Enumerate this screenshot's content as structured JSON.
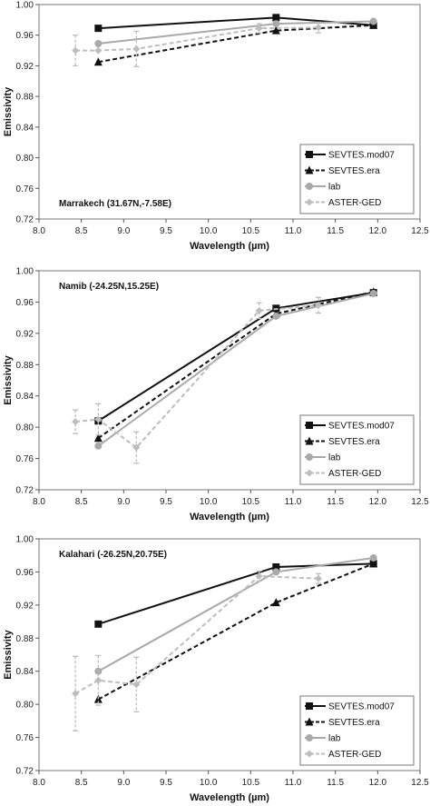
{
  "chart_data": [
    {
      "type": "line",
      "title": "",
      "annotation": "Marrakech (31.67N,-7.58E)",
      "xlabel": "Wavelength (µm)",
      "ylabel": "Emissivity",
      "xlim": [
        8.0,
        12.5
      ],
      "ylim": [
        0.72,
        1.0
      ],
      "x_ticks": [
        "8.0",
        "8.5",
        "9.0",
        "9.5",
        "10.0",
        "10.5",
        "11.0",
        "11.5",
        "12.0",
        "12.5"
      ],
      "y_ticks": [
        "0.72",
        "0.76",
        "0.80",
        "0.84",
        "0.88",
        "0.92",
        "0.96",
        "1.00"
      ],
      "grid": false,
      "legend_position": "bottom-right",
      "series": [
        {
          "name": "SEVTES.mod07",
          "color": "#111111",
          "line": "solid",
          "marker": "square",
          "x": [
            8.7,
            10.8,
            11.95
          ],
          "y": [
            0.969,
            0.983,
            0.973
          ]
        },
        {
          "name": "SEVTES.era",
          "color": "#111111",
          "line": "dashed",
          "marker": "triangle",
          "x": [
            8.7,
            10.8,
            11.95
          ],
          "y": [
            0.925,
            0.966,
            0.973
          ]
        },
        {
          "name": "lab",
          "color": "#a9a9a9",
          "line": "solid",
          "marker": "circle",
          "x": [
            8.7,
            10.8,
            11.95
          ],
          "y": [
            0.949,
            0.975,
            0.978
          ]
        },
        {
          "name": "ASTER-GED",
          "color": "#bdbdbd",
          "line": "dashed",
          "marker": "diamond",
          "x": [
            8.43,
            8.7,
            9.15,
            10.6,
            11.3
          ],
          "y": [
            0.94,
            0.94,
            0.942,
            0.969,
            0.97
          ],
          "error": [
            0.02,
            0.0,
            0.023,
            0.006,
            0.007
          ]
        }
      ]
    },
    {
      "type": "line",
      "title": "",
      "annotation": "Namib (-24.25N,15.25E)",
      "xlabel": "Wavelength (µm)",
      "ylabel": "Emissivity",
      "xlim": [
        8.0,
        12.5
      ],
      "ylim": [
        0.72,
        1.0
      ],
      "x_ticks": [
        "8.0",
        "8.5",
        "9.0",
        "9.5",
        "10.0",
        "10.5",
        "11.0",
        "11.5",
        "12.0",
        "12.5"
      ],
      "y_ticks": [
        "0.72",
        "0.76",
        "0.80",
        "0.84",
        "0.88",
        "0.92",
        "0.96",
        "1.00"
      ],
      "grid": false,
      "legend_position": "bottom-right",
      "series": [
        {
          "name": "SEVTES.mod07",
          "color": "#111111",
          "line": "solid",
          "marker": "square",
          "x": [
            8.7,
            10.8,
            11.95
          ],
          "y": [
            0.808,
            0.952,
            0.972
          ]
        },
        {
          "name": "SEVTES.era",
          "color": "#111111",
          "line": "dashed",
          "marker": "triangle",
          "x": [
            8.7,
            10.8,
            11.95
          ],
          "y": [
            0.786,
            0.945,
            0.973
          ]
        },
        {
          "name": "lab",
          "color": "#a9a9a9",
          "line": "solid",
          "marker": "circle",
          "x": [
            8.7,
            10.8,
            11.95
          ],
          "y": [
            0.776,
            0.942,
            0.971
          ]
        },
        {
          "name": "ASTER-GED",
          "color": "#bdbdbd",
          "line": "dashed",
          "marker": "diamond",
          "x": [
            8.43,
            8.7,
            9.15,
            10.6,
            11.3
          ],
          "y": [
            0.807,
            0.81,
            0.774,
            0.949,
            0.956
          ],
          "error": [
            0.015,
            0.02,
            0.02,
            0.01,
            0.01
          ]
        }
      ]
    },
    {
      "type": "line",
      "title": "",
      "annotation": "Kalahari (-26.25N,20.75E)",
      "xlabel": "Wavelength (µm)",
      "ylabel": "Emissivity",
      "xlim": [
        8.0,
        12.5
      ],
      "ylim": [
        0.72,
        1.0
      ],
      "x_ticks": [
        "8.0",
        "8.5",
        "9.0",
        "9.5",
        "10.0",
        "10.5",
        "11.0",
        "11.5",
        "12.0",
        "12.5"
      ],
      "y_ticks": [
        "0.72",
        "0.76",
        "0.80",
        "0.84",
        "0.88",
        "0.92",
        "0.96",
        "1.00"
      ],
      "grid": false,
      "legend_position": "bottom-right",
      "series": [
        {
          "name": "SEVTES.mod07",
          "color": "#111111",
          "line": "solid",
          "marker": "square",
          "x": [
            8.7,
            10.8,
            11.95
          ],
          "y": [
            0.897,
            0.966,
            0.97
          ]
        },
        {
          "name": "SEVTES.era",
          "color": "#111111",
          "line": "dashed",
          "marker": "triangle",
          "x": [
            8.7,
            10.8,
            11.95
          ],
          "y": [
            0.806,
            0.923,
            0.97
          ]
        },
        {
          "name": "lab",
          "color": "#a9a9a9",
          "line": "solid",
          "marker": "circle",
          "x": [
            8.7,
            10.8,
            11.95
          ],
          "y": [
            0.84,
            0.96,
            0.977
          ]
        },
        {
          "name": "ASTER-GED",
          "color": "#bdbdbd",
          "line": "dashed",
          "marker": "diamond",
          "x": [
            8.43,
            8.7,
            9.15,
            10.6,
            11.3
          ],
          "y": [
            0.813,
            0.829,
            0.824,
            0.955,
            0.952
          ],
          "error": [
            0.045,
            0.03,
            0.033,
            0.006,
            0.006
          ]
        }
      ]
    }
  ]
}
